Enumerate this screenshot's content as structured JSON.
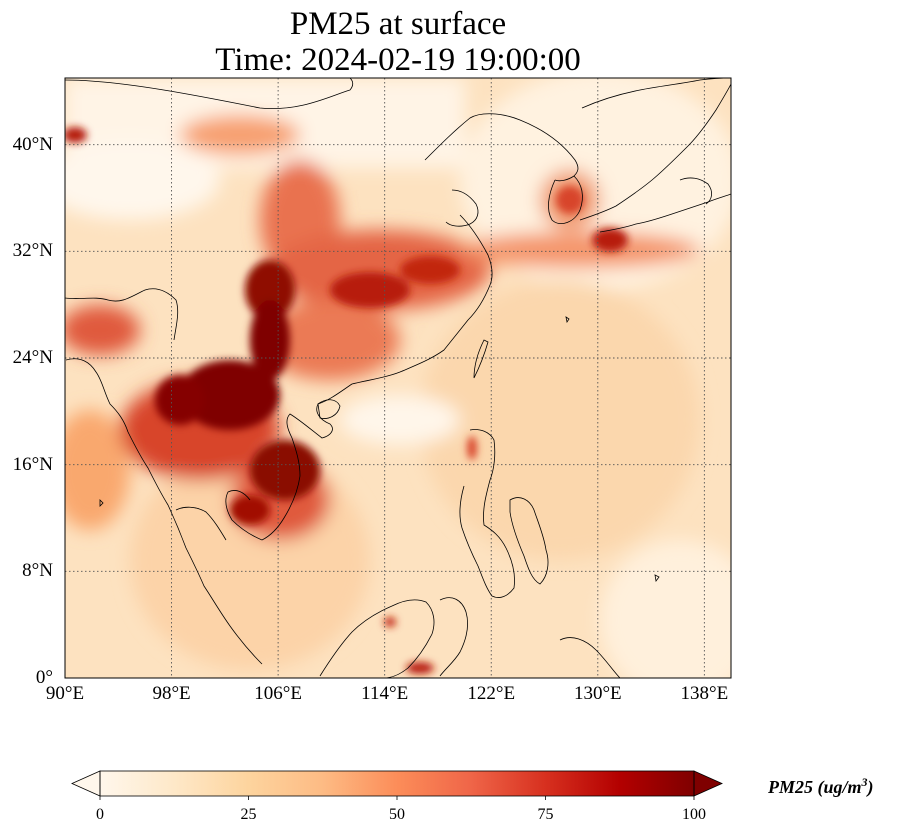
{
  "title": {
    "line1": "PM25 at surface",
    "line2": "Time: 2024-02-19 19:00:00"
  },
  "map": {
    "variable": "PM25",
    "level": "surface",
    "extent": {
      "lon_min": 90,
      "lon_max": 140,
      "lat_min": 0,
      "lat_max": 45
    },
    "gridlines": "dotted",
    "lat_ticks": [
      {
        "value": 40,
        "label": "40°N"
      },
      {
        "value": 32,
        "label": "32°N"
      },
      {
        "value": 24,
        "label": "24°N"
      },
      {
        "value": 16,
        "label": "16°N"
      },
      {
        "value": 8,
        "label": "8°N"
      },
      {
        "value": 0,
        "label": "0°"
      }
    ],
    "lon_ticks": [
      {
        "value": 90,
        "label": "90°E"
      },
      {
        "value": 98,
        "label": "98°E"
      },
      {
        "value": 106,
        "label": "106°E"
      },
      {
        "value": 114,
        "label": "114°E"
      },
      {
        "value": 122,
        "label": "122°E"
      },
      {
        "value": 130,
        "label": "130°E"
      },
      {
        "value": 138,
        "label": "138°E"
      }
    ]
  },
  "colorbar": {
    "colormap": "OrRd",
    "colors": [
      "#fff7ec",
      "#fee8c8",
      "#fdd49e",
      "#fdbb84",
      "#fc8d59",
      "#ef6548",
      "#d7301f",
      "#b30000",
      "#7f0000"
    ],
    "min": 0,
    "max": 100,
    "extend": "both",
    "ticks": [
      {
        "value": 0,
        "label": "0"
      },
      {
        "value": 25,
        "label": "25"
      },
      {
        "value": 50,
        "label": "50"
      },
      {
        "value": 75,
        "label": "75"
      },
      {
        "value": 100,
        "label": "100"
      }
    ],
    "label_text": "PM25 (ug/m",
    "label_exp": "3",
    "label_close": ")"
  }
}
